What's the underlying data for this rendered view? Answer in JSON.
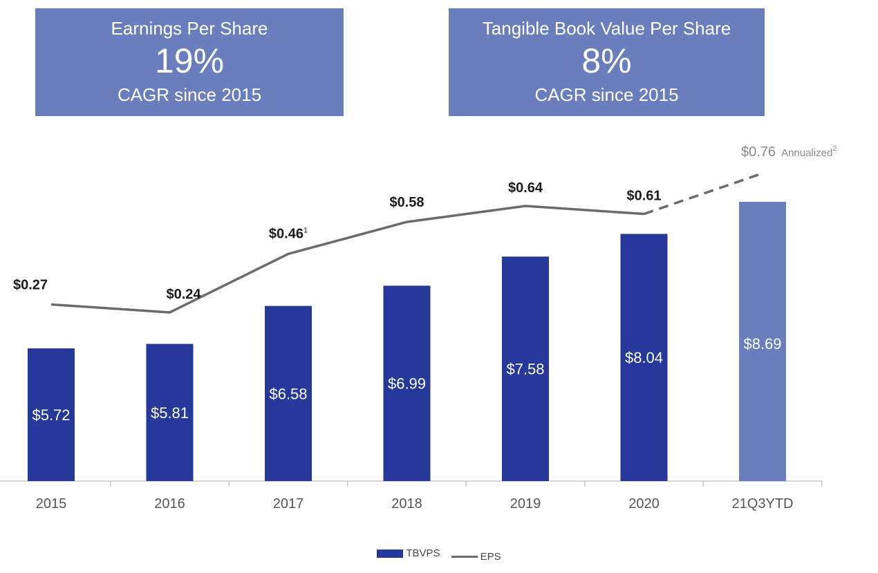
{
  "kpis": [
    {
      "title": "Earnings Per Share",
      "value": "19%",
      "subtitle": "CAGR since 2015"
    },
    {
      "title": "Tangible Book Value Per  Share",
      "value": "8%",
      "subtitle": "CAGR since 2015"
    }
  ],
  "colors": {
    "bar": "#26399a",
    "bar_projected": "#6a7dbd",
    "line": "#6b6b6b",
    "axis": "#c8c8c8",
    "kpi_bg": "#6a7dbd"
  },
  "chart_data": {
    "type": "bar",
    "categories": [
      "2015",
      "2016",
      "2017",
      "2018",
      "2019",
      "2020",
      "21Q3YTD"
    ],
    "series": [
      {
        "name": "TBVPS",
        "type": "bar",
        "values": [
          5.72,
          5.81,
          6.58,
          6.99,
          7.58,
          8.04,
          8.69
        ],
        "labels": [
          "$5.72",
          "$5.81",
          "$6.58",
          "$6.99",
          "$7.58",
          "$8.04",
          "$8.69"
        ]
      },
      {
        "name": "EPS",
        "type": "line",
        "values": [
          0.27,
          0.24,
          0.46,
          0.58,
          0.64,
          0.61,
          0.76
        ],
        "labels": [
          "$0.27",
          "$0.24",
          "$0.46",
          "$0.58",
          "$0.64",
          "$0.61",
          "$0.76"
        ],
        "superscripts": [
          "",
          "",
          "1",
          "",
          "",
          "",
          "2"
        ],
        "projected_from_index": 5
      }
    ],
    "annotation": "Annualized",
    "legend": [
      "TBVPS",
      "EPS"
    ],
    "legend_position": "bottom-center",
    "grid": false
  }
}
